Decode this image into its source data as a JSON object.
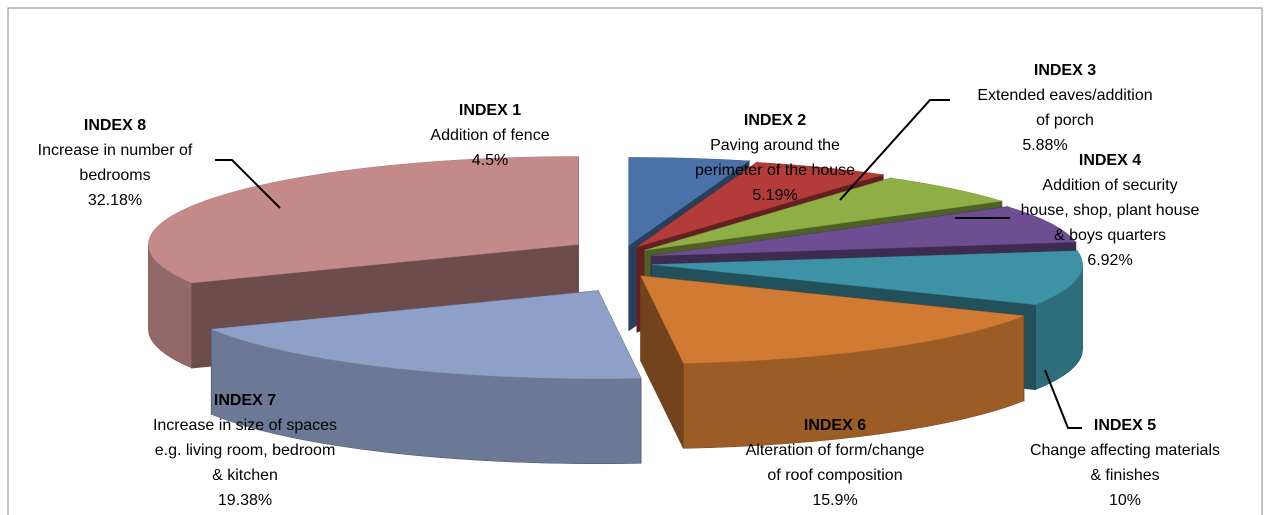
{
  "chart_data": {
    "type": "pie3d",
    "categories": [
      "INDEX 1",
      "INDEX 2",
      "INDEX 3",
      "INDEX 4",
      "INDEX 5",
      "INDEX 6",
      "INDEX 7",
      "INDEX 8"
    ],
    "descriptions": [
      [
        "Addition of fence"
      ],
      [
        "Paving around the",
        "perimeter of the house"
      ],
      [
        "Extended eaves/addition",
        "of porch"
      ],
      [
        "Addition of security",
        "house, shop, plant house",
        "& boys quarters"
      ],
      [
        "Change affecting materials",
        "& finishes"
      ],
      [
        "Alteration of form/change",
        "of roof composition"
      ],
      [
        "Increase in size of spaces",
        "e.g. living room, bedroom",
        "& kitchen"
      ],
      [
        "Increase in number of",
        "bedrooms"
      ]
    ],
    "values": [
      4.5,
      5.19,
      5.88,
      6.92,
      10,
      15.9,
      19.38,
      32.18
    ],
    "value_labels": [
      "4.5%",
      "5.19%",
      "5.88%",
      "6.92%",
      "10%",
      "15.9%",
      "19.38%",
      "32.18%"
    ],
    "colors": [
      "#4a72a8",
      "#b33c3a",
      "#8fae45",
      "#6e4e92",
      "#3d93a5",
      "#d07a33",
      "#8ea0c8",
      "#c48a8a"
    ]
  }
}
